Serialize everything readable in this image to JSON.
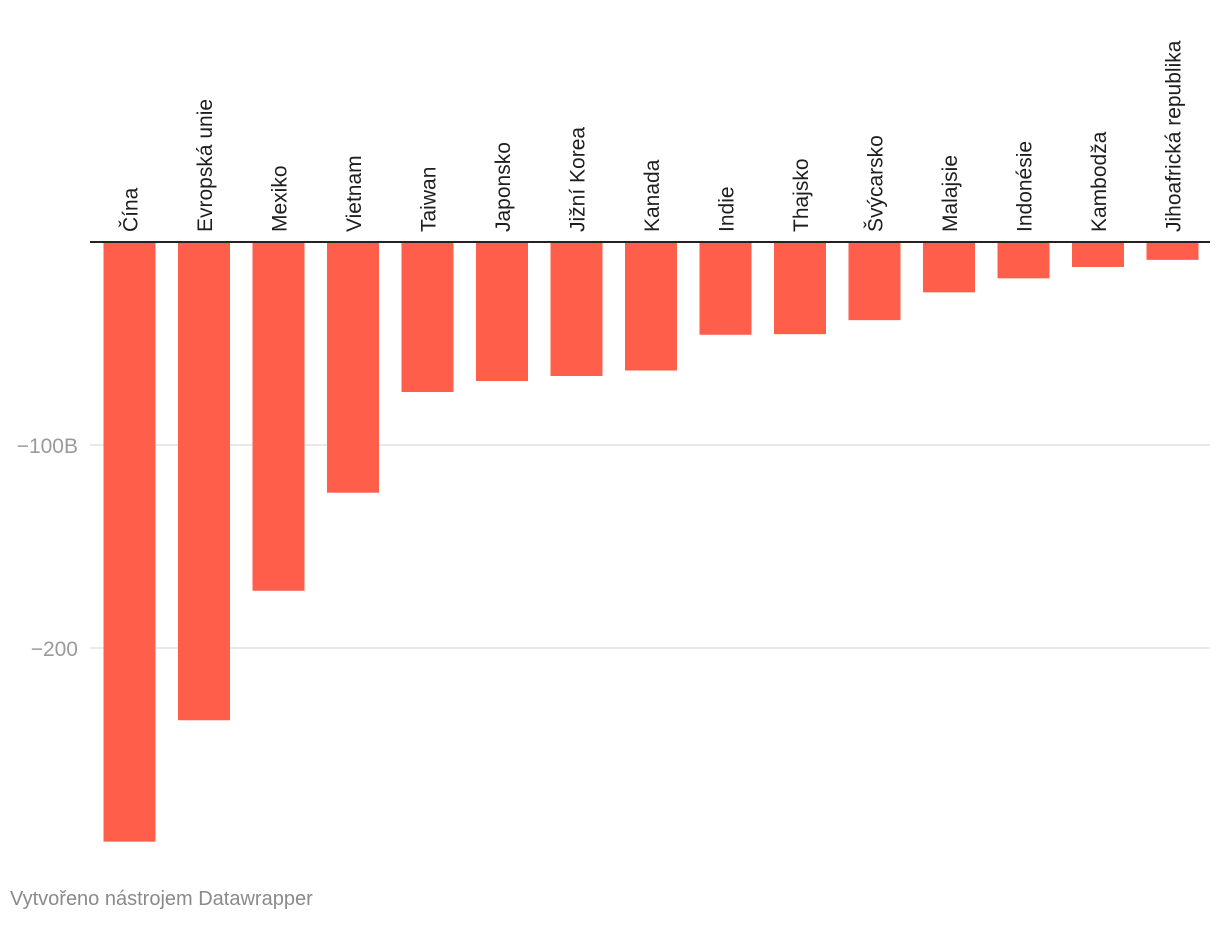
{
  "chart_data": {
    "type": "bar",
    "title": "",
    "xlabel": "",
    "ylabel": "",
    "categories": [
      "Čína",
      "Evropská unie",
      "Mexiko",
      "Vietnam",
      "Taiwan",
      "Japonsko",
      "Jižní Korea",
      "Kanada",
      "Indie",
      "Thajsko",
      "Švýcarsko",
      "Malajsie",
      "Indonésie",
      "Kambodža",
      "Jihoafrická republika"
    ],
    "values": [
      -295.4,
      -235.6,
      -171.8,
      -123.5,
      -73.9,
      -68.5,
      -66.0,
      -63.3,
      -45.7,
      -45.4,
      -38.5,
      -24.8,
      -17.9,
      -12.3,
      -8.8
    ],
    "ylim": [
      -300,
      0
    ],
    "yticks": [
      {
        "value": -100,
        "label": "−100B"
      },
      {
        "value": -200,
        "label": "−200"
      }
    ],
    "grid": true,
    "bar_color": "#ff5e4b"
  },
  "footer": {
    "credit": "Vytvořeno nástrojem Datawrapper"
  }
}
